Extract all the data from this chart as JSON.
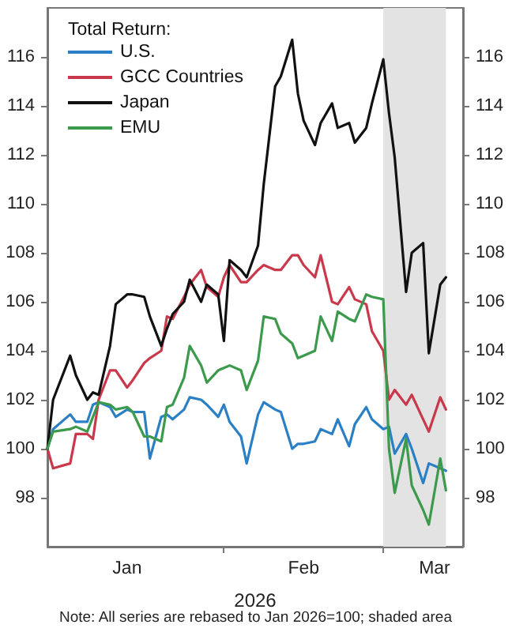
{
  "chart_data": {
    "type": "line",
    "legend_title": "Total Return:",
    "xlabel": "2026",
    "annotations": [
      "Note: All series are rebased to Jan 2026=100; shaded area"
    ],
    "x": [
      "2026-01-01",
      "2026-01-02",
      "2026-01-05",
      "2026-01-06",
      "2026-01-08",
      "2026-01-09",
      "2026-01-10",
      "2026-01-12",
      "2026-01-13",
      "2026-01-15",
      "2026-01-16",
      "2026-01-18",
      "2026-01-19",
      "2026-01-21",
      "2026-01-22",
      "2026-01-23",
      "2026-01-25",
      "2026-01-26",
      "2026-01-28",
      "2026-01-29",
      "2026-01-31",
      "2026-02-01",
      "2026-02-02",
      "2026-02-04",
      "2026-02-05",
      "2026-02-07",
      "2026-02-08",
      "2026-02-10",
      "2026-02-11",
      "2026-02-13",
      "2026-02-14",
      "2026-02-15",
      "2026-02-17",
      "2026-02-18",
      "2026-02-20",
      "2026-02-21",
      "2026-02-23",
      "2026-02-24",
      "2026-02-26",
      "2026-02-27",
      "2026-03-01",
      "2026-03-02",
      "2026-03-03",
      "2026-03-05",
      "2026-03-06",
      "2026-03-08",
      "2026-03-09",
      "2026-03-11",
      "2026-03-12"
    ],
    "series": [
      {
        "name": "U.S.",
        "color": "#2b80c5",
        "values": [
          100,
          100.8,
          101.4,
          101.1,
          101.1,
          101.8,
          101.9,
          101.7,
          101.3,
          101.6,
          101.5,
          101.5,
          99.6,
          101.3,
          101.4,
          101.2,
          101.6,
          102.1,
          102.0,
          101.8,
          101.3,
          101.8,
          101.1,
          100.5,
          99.4,
          101.4,
          101.9,
          101.6,
          101.5,
          100.0,
          100.2,
          100.2,
          100.3,
          100.8,
          100.6,
          101.2,
          100.1,
          101.0,
          101.7,
          101.2,
          100.8,
          100.9,
          99.8,
          100.6,
          100.0,
          98.6,
          99.4,
          99.2,
          99.1
        ]
      },
      {
        "name": "GCC Countries",
        "color": "#c9394b",
        "values": [
          100,
          99.2,
          99.4,
          100.6,
          100.6,
          100.4,
          102.0,
          103.2,
          103.2,
          102.5,
          102.8,
          103.5,
          103.7,
          104.0,
          105.4,
          105.3,
          106.2,
          106.7,
          107.3,
          106.6,
          106.2,
          107.0,
          107.5,
          106.8,
          106.8,
          107.3,
          107.5,
          107.3,
          107.3,
          107.9,
          107.9,
          107.5,
          107.0,
          107.9,
          106.0,
          105.9,
          106.6,
          106.1,
          105.9,
          104.8,
          104.0,
          102.0,
          102.4,
          101.8,
          102.2,
          101.2,
          100.7,
          102.1,
          101.6
        ]
      },
      {
        "name": "Japan",
        "color": "#111111",
        "values": [
          100,
          102,
          103.8,
          103.0,
          102.0,
          102.3,
          102.2,
          104.2,
          105.9,
          106.3,
          106.3,
          106.2,
          105.4,
          104.2,
          104.9,
          105.5,
          106.0,
          106.9,
          106.0,
          106.7,
          106.3,
          104.4,
          107.7,
          107.3,
          107.0,
          108.3,
          110.8,
          114.8,
          115.2,
          116.7,
          114.5,
          113.4,
          112.4,
          113.3,
          114.1,
          113.1,
          113.3,
          112.5,
          113.1,
          114.1,
          115.9,
          113.7,
          111.9,
          106.4,
          108.0,
          108.4,
          103.9,
          106.7,
          107.0
        ]
      },
      {
        "name": "EMU",
        "color": "#3c9a4c",
        "values": [
          100,
          100.7,
          100.8,
          100.9,
          100.7,
          101.3,
          101.9,
          101.8,
          101.6,
          101.7,
          101.5,
          100.5,
          100.5,
          100.3,
          101.7,
          101.8,
          102.9,
          104.2,
          103.4,
          102.7,
          103.2,
          103.3,
          103.4,
          103.2,
          102.4,
          103.6,
          105.4,
          105.3,
          104.7,
          104.3,
          103.7,
          103.8,
          104.0,
          105.4,
          104.4,
          105.6,
          105.3,
          105.2,
          106.3,
          106.2,
          106.1,
          100.0,
          98.2,
          100.4,
          98.5,
          97.5,
          96.9,
          99.6,
          98.3
        ]
      }
    ],
    "bands": [
      {
        "axis": "x",
        "from": "2026-03-01",
        "to": "2026-03-12",
        "color": "#e3e3e3"
      }
    ],
    "xlim": [
      "2026-01-01",
      "2026-03-15"
    ],
    "xticks": [
      {
        "value": "2026-01-15",
        "label": "Jan"
      },
      {
        "value": "2026-02-01",
        "label": null
      },
      {
        "value": "2026-02-15",
        "label": "Feb"
      },
      {
        "value": "2026-03-01",
        "label": null
      },
      {
        "value": "2026-03-10",
        "label": "Mar"
      }
    ],
    "ylim": [
      96,
      118
    ],
    "yticks": [
      98,
      100,
      102,
      104,
      106,
      108,
      110,
      112,
      114,
      116
    ],
    "y2lim": [
      96,
      118
    ],
    "y2ticks": [
      98,
      100,
      102,
      104,
      106,
      108,
      110,
      112,
      114,
      116
    ],
    "legend": "top left",
    "grid": false,
    "marker": "none",
    "line_style": "solid"
  }
}
